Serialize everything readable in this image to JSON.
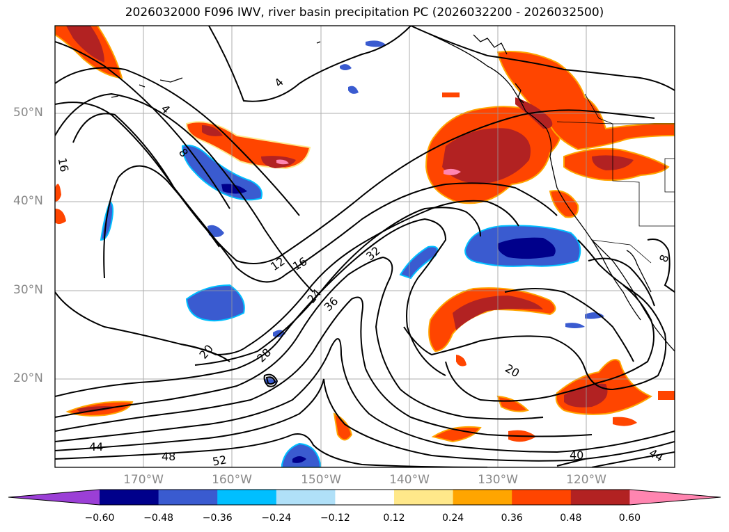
{
  "title": "2026032000 F096 IWV, river basin precipitation PC (2026032200 - 2026032500)",
  "lat_labels": [
    "50°N",
    "40°N",
    "30°N",
    "20°N"
  ],
  "lon_labels": [
    "170°W",
    "160°W",
    "150°W",
    "140°W",
    "130°W",
    "120°W"
  ],
  "colorbar": {
    "colors": [
      "#9b3fd6",
      "#00008b",
      "#3a5bd0",
      "#00bfff",
      "#b0e0f8",
      "#ffffff",
      "#ffe88a",
      "#ffa500",
      "#ff4500",
      "#b22222",
      "#ff85b0"
    ],
    "labels": [
      "−0.60",
      "−0.48",
      "−0.36",
      "−0.24",
      "−0.12",
      "0.12",
      "0.24",
      "0.36",
      "0.48",
      "0.60"
    ]
  },
  "contour_labels": [
    "4",
    "4",
    "8",
    "16",
    "12",
    "16",
    "24",
    "36",
    "32",
    "20",
    "28",
    "20",
    "44",
    "48",
    "52",
    "40",
    "44",
    "8"
  ]
}
